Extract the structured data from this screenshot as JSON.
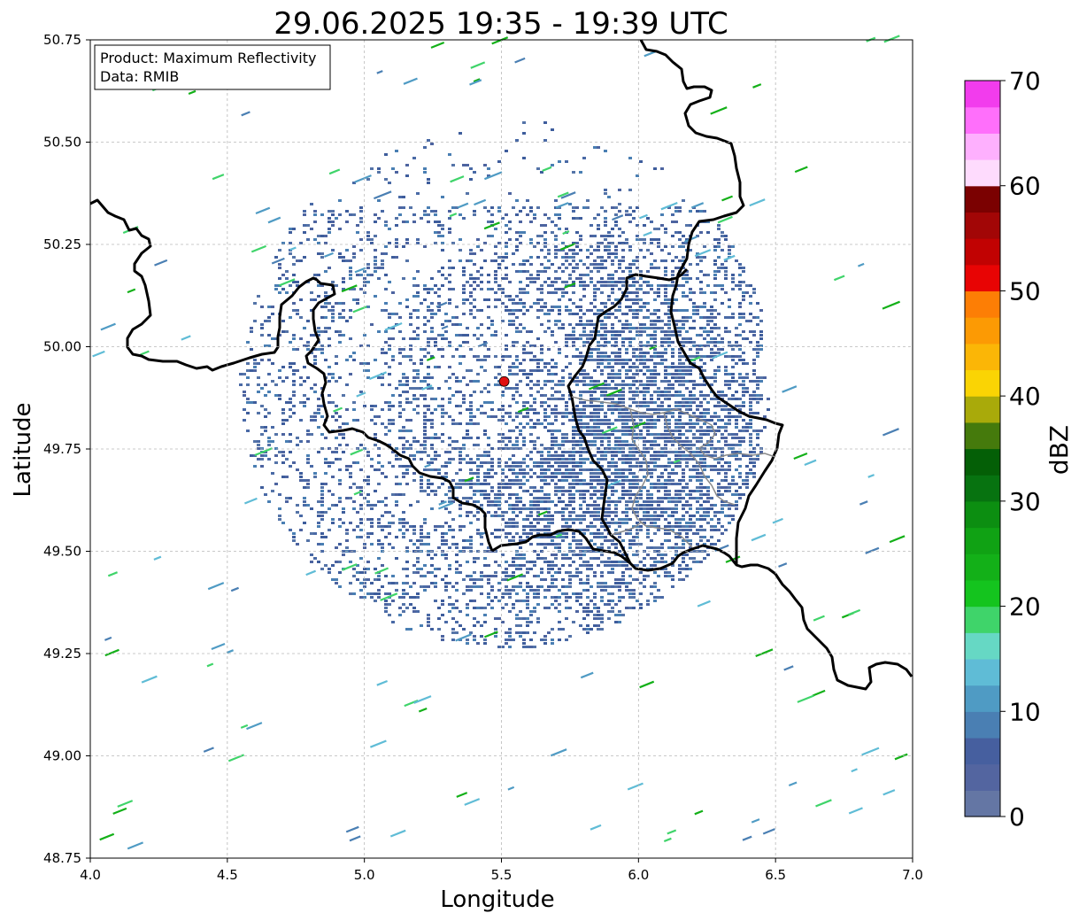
{
  "title": "29.06.2025 19:35 - 19:39 UTC",
  "info_box": {
    "line1": "Product: Maximum Reflectivity",
    "line2": "Data: RMIB"
  },
  "axes": {
    "xlabel": "Longitude",
    "ylabel": "Latitude",
    "xlim": [
      4.0,
      7.0
    ],
    "ylim": [
      48.75,
      50.75
    ],
    "xticks": [
      "4.0",
      "4.5",
      "5.0",
      "5.5",
      "6.0",
      "6.5",
      "7.0"
    ],
    "yticks": [
      "48.75",
      "49.00",
      "49.25",
      "49.50",
      "49.75",
      "50.00",
      "50.25",
      "50.50",
      "50.75"
    ],
    "grid": "dashed"
  },
  "colorbar": {
    "label": "dBZ",
    "ticks": [
      "0",
      "10",
      "20",
      "30",
      "40",
      "50",
      "60",
      "70"
    ],
    "range": [
      0,
      70
    ],
    "colors": [
      "#6476a4",
      "#5365a0",
      "#465f9f",
      "#4a7fb3",
      "#4f9bc4",
      "#5fbcd6",
      "#66d8c4",
      "#3fd46a",
      "#14c41e",
      "#13b018",
      "#10a214",
      "#0c8e11",
      "#077310",
      "#045f06",
      "#457a0c",
      "#a9aa0a",
      "#fad404",
      "#fbb606",
      "#fc9a04",
      "#fd7e05",
      "#e80404",
      "#c10202",
      "#a20606",
      "#7b0101",
      "#fedbfd",
      "#feb0fe",
      "#ff6ffb",
      "#f23ced"
    ]
  },
  "radar_site": {
    "lon": 5.51,
    "lat": 49.915,
    "color": "#e01010"
  },
  "chart_data": {
    "type": "heatmap",
    "title": "29.06.2025 19:35 - 19:39 UTC",
    "xlabel": "Longitude",
    "ylabel": "Latitude",
    "xlim": [
      4.0,
      7.0
    ],
    "ylim": [
      48.75,
      50.75
    ],
    "colorbar_label": "dBZ",
    "colorbar_range": [
      0,
      70
    ],
    "colorbar_ticks": [
      0,
      10,
      20,
      30,
      40,
      50,
      60,
      70
    ],
    "radar_site": {
      "lon": 5.51,
      "lat": 49.915
    },
    "precip_extent": "echo field mostly 0-10 dBZ, densest around 5.2-6.4 lon and 49.4-50.1 lat",
    "grid": true
  }
}
